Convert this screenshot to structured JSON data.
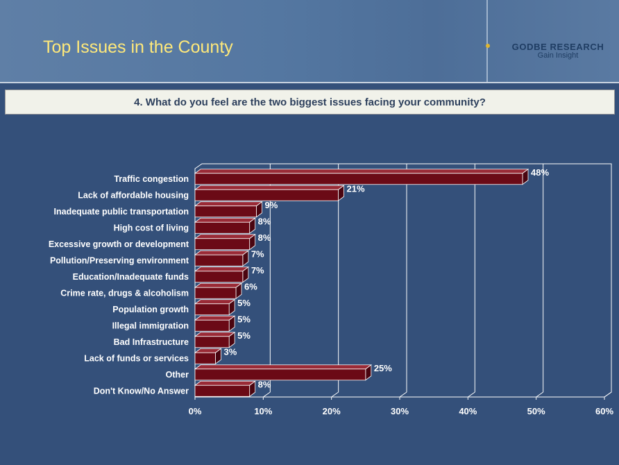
{
  "header": {
    "title": "Top Issues in the County",
    "logo": {
      "name": "GODBE RESEARCH",
      "tagline": "Gain Insight"
    }
  },
  "question": "4. What do you feel are the two biggest issues facing your community?",
  "colors": {
    "bar": "#6b0a16",
    "bar_top": "#9a2a36",
    "bar_side": "#4a0510",
    "plot_line": "#ffffff"
  },
  "chart_data": {
    "type": "bar",
    "orientation": "horizontal",
    "categories": [
      "Traffic congestion",
      "Lack of affordable housing",
      "Inadequate public transportation",
      "High cost of living",
      "Excessive growth or development",
      "Pollution/Preserving environment",
      "Education/Inadequate funds",
      "Crime rate, drugs & alcoholism",
      "Population growth",
      "Illegal immigration",
      "Bad Infrastructure",
      "Lack of funds or services",
      "Other",
      "Don't Know/No Answer"
    ],
    "values": [
      48,
      21,
      9,
      8,
      8,
      7,
      7,
      6,
      5,
      5,
      5,
      3,
      25,
      8
    ],
    "value_labels": [
      "48%",
      "21%",
      "9%",
      "8%",
      "8%",
      "7%",
      "7%",
      "6%",
      "5%",
      "5%",
      "5%",
      "3%",
      "25%",
      "8%"
    ],
    "xlim": [
      0,
      60
    ],
    "xticks": [
      "0%",
      "10%",
      "20%",
      "30%",
      "40%",
      "50%",
      "60%"
    ],
    "grid": true,
    "unit": "%"
  }
}
